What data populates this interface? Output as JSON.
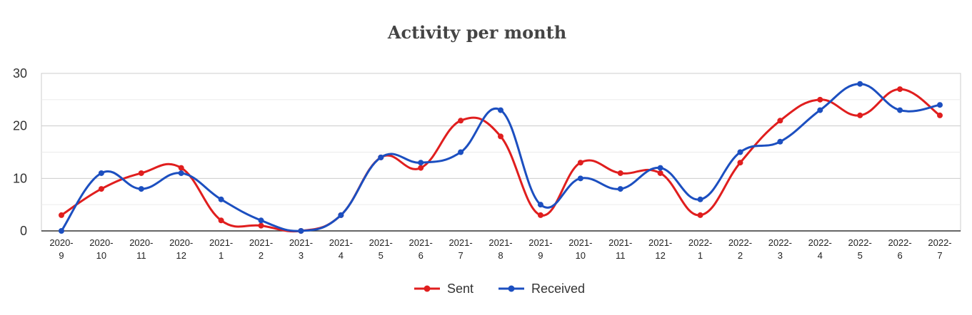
{
  "chart_data": {
    "type": "line",
    "title": "Activity per month",
    "xlabel": "",
    "ylabel": "",
    "categories": [
      "2020-9",
      "2020-10",
      "2020-11",
      "2020-12",
      "2021-1",
      "2021-2",
      "2021-3",
      "2021-4",
      "2021-5",
      "2021-6",
      "2021-7",
      "2021-8",
      "2021-9",
      "2021-10",
      "2021-11",
      "2021-12",
      "2022-1",
      "2022-2",
      "2022-3",
      "2022-4",
      "2022-5",
      "2022-6",
      "2022-7"
    ],
    "ylim": [
      0,
      30
    ],
    "yticks": [
      0,
      10,
      20,
      30
    ],
    "grid": true,
    "legend_position": "bottom",
    "series": [
      {
        "name": "Sent",
        "color": "#e01e1e",
        "values": [
          3,
          8,
          11,
          12,
          2,
          1,
          0,
          3,
          14,
          12,
          21,
          18,
          3,
          13,
          11,
          11,
          3,
          13,
          21,
          25,
          22,
          27,
          22
        ]
      },
      {
        "name": "Received",
        "color": "#1c4fc0",
        "values": [
          0,
          11,
          8,
          11,
          6,
          2,
          0,
          3,
          14,
          13,
          15,
          23,
          5,
          10,
          8,
          12,
          6,
          15,
          17,
          23,
          28,
          23,
          24
        ]
      }
    ]
  }
}
